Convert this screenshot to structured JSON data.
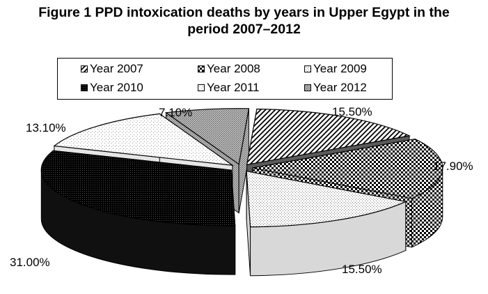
{
  "chart_data": {
    "type": "pie",
    "title_lines": [
      "Figure 1 PPD intoxication deaths by years in Upper Egypt in the",
      "period 2007–2012"
    ],
    "categories": [
      "Year 2007",
      "Year 2008",
      "Year 2009",
      "Year 2010",
      "Year 2011",
      "Year 2012"
    ],
    "values": [
      15.5,
      17.9,
      15.5,
      31.0,
      13.1,
      7.1
    ],
    "data_labels": [
      "15.50%",
      "17.90%",
      "15.50%",
      "31.00%",
      "13.10%",
      "7.10%"
    ],
    "three_d": true,
    "exploded": true,
    "legend_position": "top",
    "patterns": [
      "diagonal-stripes",
      "checkerboard",
      "light-dots",
      "dense-dark-dots",
      "sparse-dots",
      "medium-gray-dots"
    ]
  }
}
